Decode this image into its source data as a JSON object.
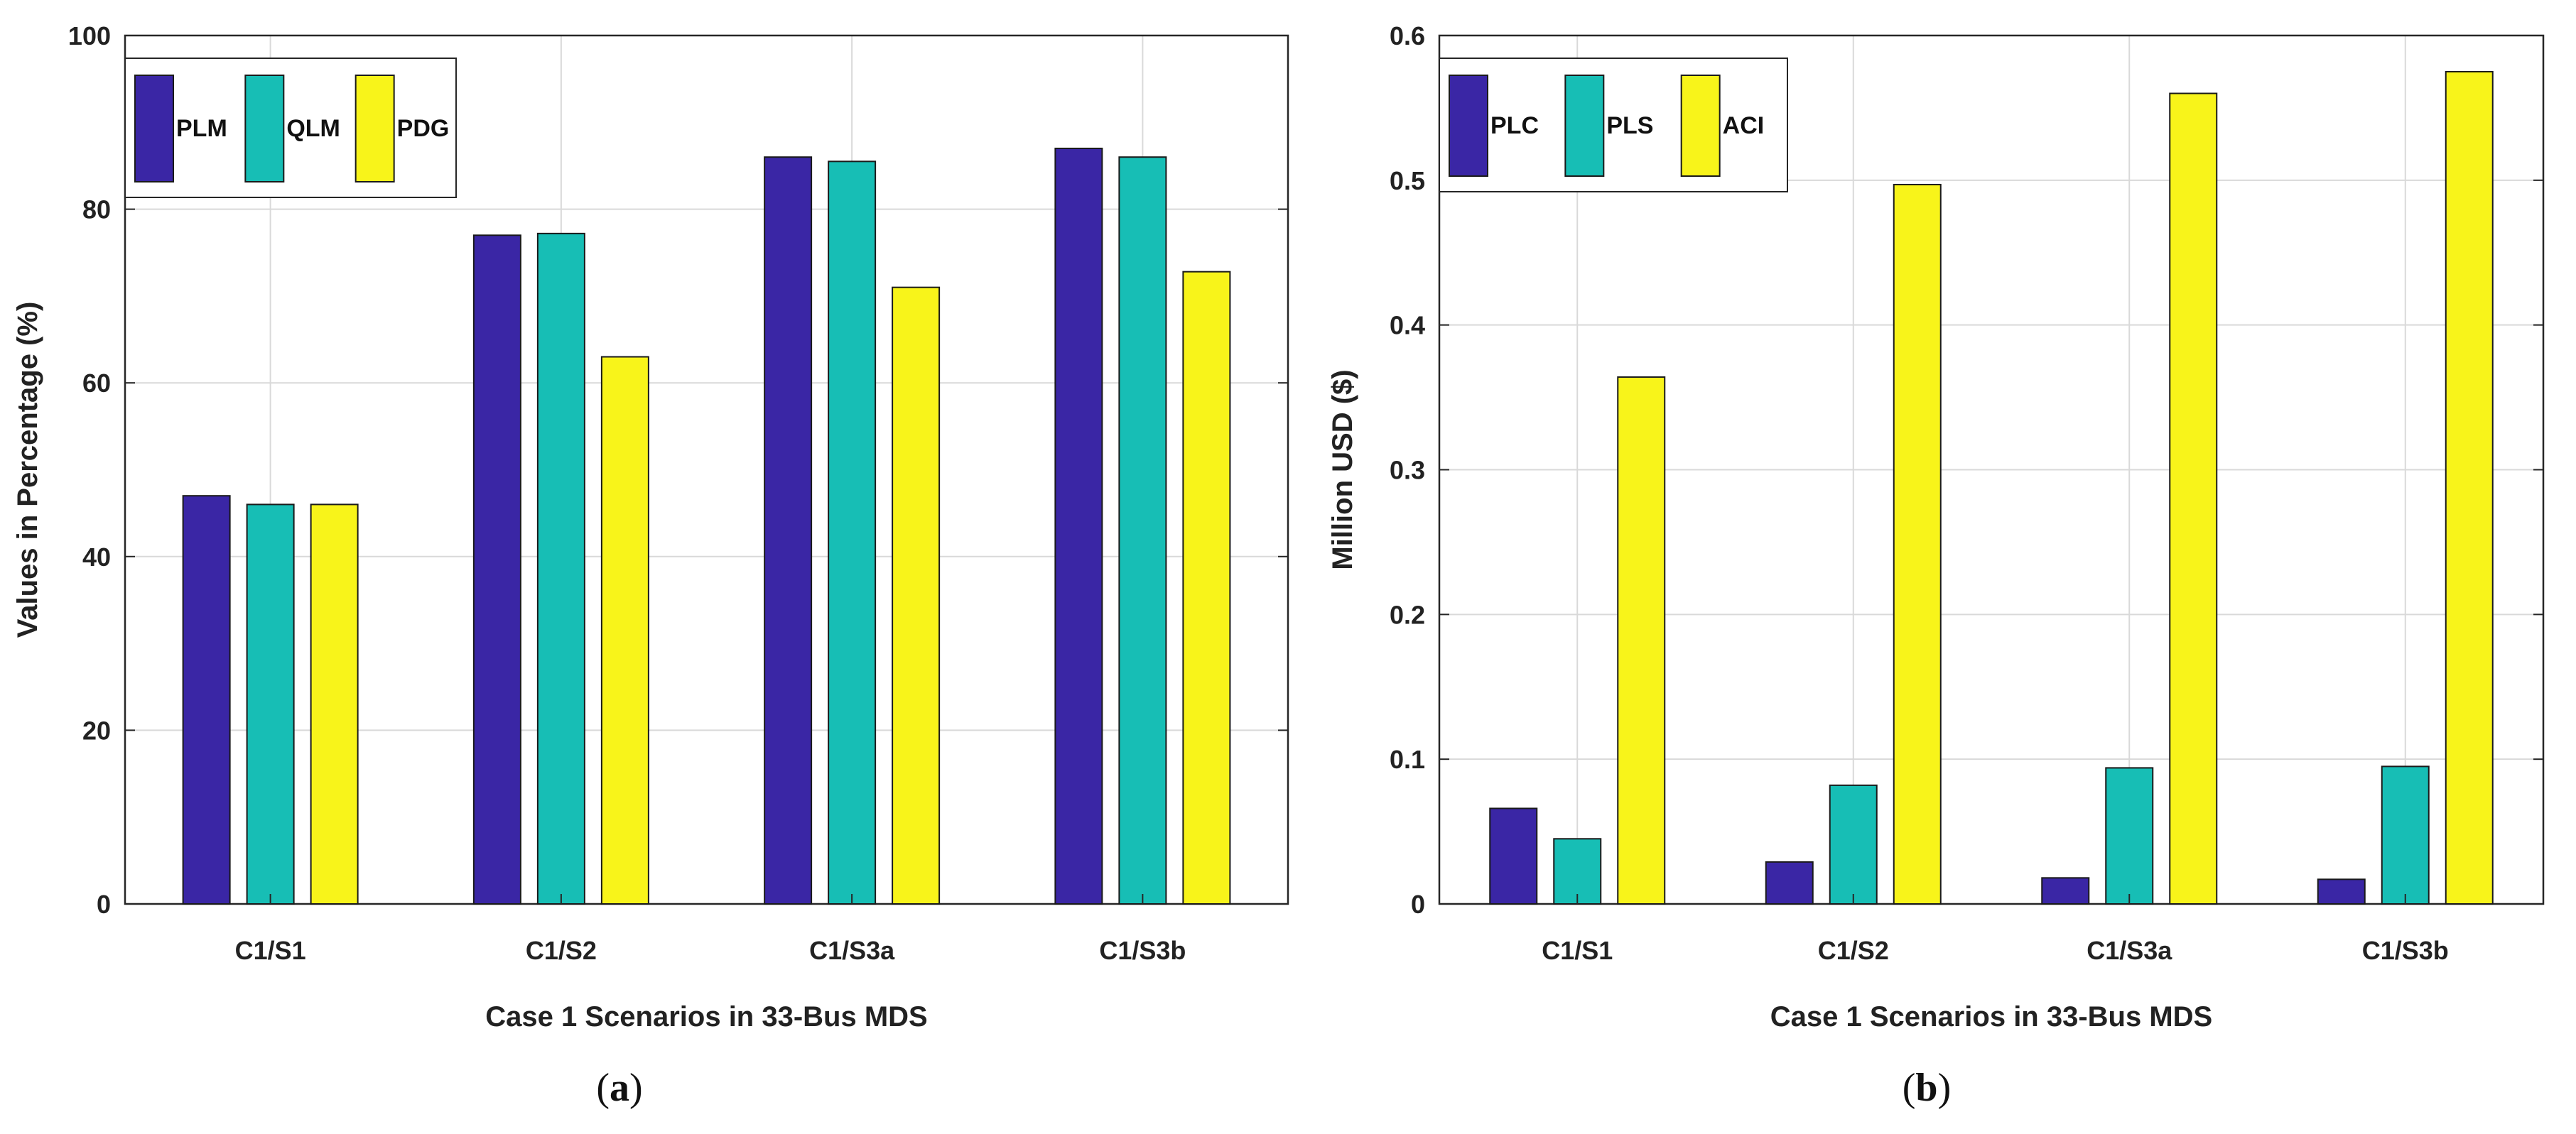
{
  "chart_data": [
    {
      "type": "bar",
      "title": "",
      "caption": "a",
      "categories": [
        "C1/S1",
        "C1/S2",
        "C1/S3a",
        "C1/S3b"
      ],
      "series": [
        {
          "name": "PLM",
          "color": "#3a26a5",
          "values": [
            47,
            77,
            86,
            87
          ]
        },
        {
          "name": "QLM",
          "color": "#17beb5",
          "values": [
            46,
            77.2,
            85.5,
            86
          ]
        },
        {
          "name": "PDG",
          "color": "#f8f41a",
          "values": [
            46,
            63,
            71,
            72.8
          ]
        }
      ],
      "xlabel": "Case 1 Scenarios in 33-Bus MDS",
      "ylabel": "Values in Percentage (%)",
      "ylim": [
        0,
        100
      ],
      "yticks": [
        "0",
        "20",
        "40",
        "60",
        "80",
        "100"
      ],
      "grid": true,
      "legend_position": "top-left"
    },
    {
      "type": "bar",
      "title": "",
      "caption": "b",
      "categories": [
        "C1/S1",
        "C1/S2",
        "C1/S3a",
        "C1/S3b"
      ],
      "series": [
        {
          "name": "PLC",
          "color": "#3a26a5",
          "values": [
            0.066,
            0.029,
            0.018,
            0.017
          ]
        },
        {
          "name": "PLS",
          "color": "#17beb5",
          "values": [
            0.045,
            0.082,
            0.094,
            0.095
          ]
        },
        {
          "name": "ACI",
          "color": "#f8f41a",
          "values": [
            0.364,
            0.497,
            0.56,
            0.575
          ]
        }
      ],
      "xlabel": "Case 1 Scenarios in 33-Bus MDS",
      "ylabel": "Million USD ($)",
      "ylim": [
        0,
        0.6
      ],
      "yticks": [
        "0",
        "0.1",
        "0.2",
        "0.3",
        "0.4",
        "0.5",
        "0.6"
      ],
      "grid": true,
      "legend_position": "top-left"
    }
  ]
}
